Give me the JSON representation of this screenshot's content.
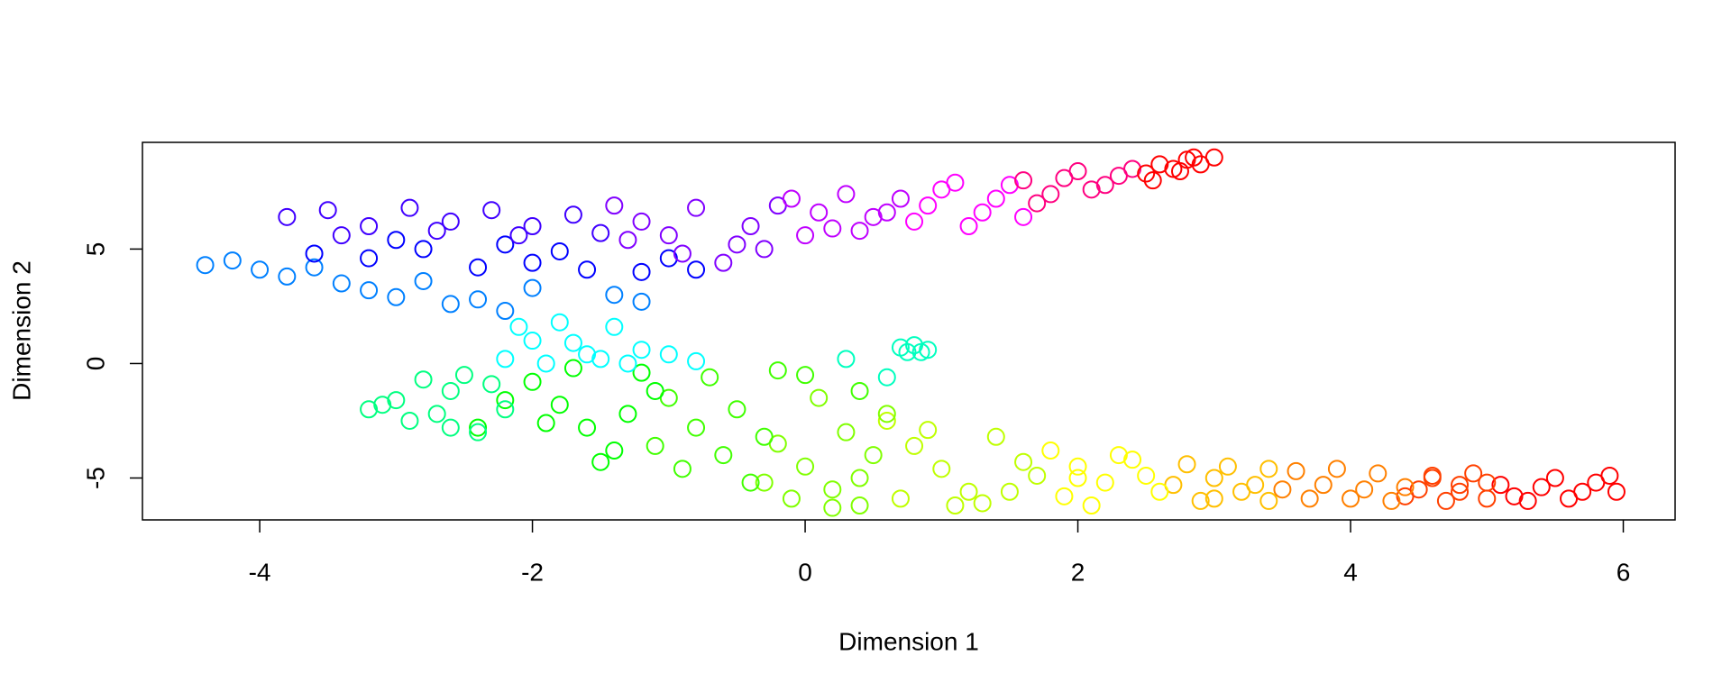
{
  "chart_data": {
    "type": "scatter",
    "xlabel": "Dimension 1",
    "ylabel": "Dimension 2",
    "xlim": [
      -4.86,
      6.38
    ],
    "ylim": [
      -6.83,
      9.66
    ],
    "xticks": [
      -4,
      -2,
      0,
      2,
      4,
      6
    ],
    "yticks": [
      -5,
      0,
      5
    ],
    "series": [
      {
        "color": "#ff0000",
        "x": [
          5.95,
          5.8,
          5.6,
          5.4,
          5.2,
          5.9,
          5.5,
          5.3,
          5.7,
          5.1
        ],
        "values": [
          -5.6,
          -5.2,
          -5.9,
          -5.4,
          -5.8,
          -4.9,
          -5.0,
          -6.0,
          -5.6,
          -5.3
        ]
      },
      {
        "color": "#ff4000",
        "x": [
          4.6,
          4.8,
          5.0,
          4.7,
          4.9,
          4.5,
          5.0,
          4.6,
          4.8,
          4.4
        ],
        "values": [
          -5.0,
          -5.6,
          -5.2,
          -6.0,
          -4.8,
          -5.5,
          -5.9,
          -4.9,
          -5.3,
          -5.8
        ]
      },
      {
        "color": "#ff8000",
        "x": [
          3.6,
          3.8,
          4.0,
          4.2,
          4.4,
          3.7,
          3.9,
          4.1,
          4.3,
          3.5
        ],
        "values": [
          -4.7,
          -5.3,
          -5.9,
          -4.8,
          -5.4,
          -5.9,
          -4.6,
          -5.5,
          -6.0,
          -5.5
        ]
      },
      {
        "color": "#ffbf00",
        "x": [
          2.8,
          3.0,
          3.2,
          3.4,
          2.9,
          3.1,
          3.3,
          2.7,
          3.0,
          3.4
        ],
        "values": [
          -4.4,
          -5.0,
          -5.6,
          -4.6,
          -6.0,
          -4.5,
          -5.3,
          -5.3,
          -5.9,
          -6.0
        ]
      },
      {
        "color": "#ffff00",
        "x": [
          1.8,
          2.0,
          2.2,
          2.4,
          2.6,
          1.9,
          2.1,
          2.3,
          2.5,
          2.0
        ],
        "values": [
          -3.8,
          -4.5,
          -5.2,
          -4.2,
          -5.6,
          -5.8,
          -6.2,
          -4.0,
          -4.9,
          -5.0
        ]
      },
      {
        "color": "#bfff00",
        "x": [
          0.6,
          0.8,
          1.0,
          1.2,
          1.4,
          1.6,
          0.7,
          1.1,
          1.5,
          0.9,
          1.3,
          1.7
        ],
        "values": [
          -2.5,
          -3.6,
          -4.6,
          -5.6,
          -3.2,
          -4.3,
          -5.9,
          -6.2,
          -5.6,
          -2.9,
          -6.1,
          -4.9
        ]
      },
      {
        "color": "#80ff00",
        "x": [
          -0.2,
          0,
          0.2,
          0.4,
          0.6,
          -0.1,
          0.1,
          0.3,
          0.5,
          0.2,
          0.4,
          -0.3
        ],
        "values": [
          -3.5,
          -4.5,
          -5.5,
          -6.2,
          -2.2,
          -5.9,
          -1.5,
          -3.0,
          -4.0,
          -6.3,
          -5.0,
          -5.2
        ]
      },
      {
        "color": "#40ff00",
        "x": [
          -1,
          -0.8,
          -0.6,
          -0.4,
          -0.2,
          -0.9,
          -0.7,
          -0.5,
          -0.3,
          0,
          -1.1,
          0.4
        ],
        "values": [
          -1.5,
          -2.8,
          -4.0,
          -5.2,
          -0.3,
          -4.6,
          -0.6,
          -2.0,
          -3.2,
          -0.5,
          -3.6,
          -1.2
        ]
      },
      {
        "color": "#00ff00",
        "x": [
          -2,
          -1.8,
          -1.6,
          -1.4,
          -1.2,
          -1.7,
          -1.5,
          -1.3,
          -1.9,
          -1.1,
          -2.2,
          -2.4
        ],
        "values": [
          -0.8,
          -1.8,
          -2.8,
          -3.8,
          -0.4,
          -0.2,
          -4.3,
          -2.2,
          -2.6,
          -1.2,
          -1.6,
          -2.8
        ]
      },
      {
        "color": "#00ff80",
        "x": [
          -3.2,
          -3.0,
          -2.8,
          -2.6,
          -2.4,
          -2.9,
          -2.7,
          -2.5,
          -2.3,
          -3.1,
          -2.6,
          -2.2
        ],
        "values": [
          -2.0,
          -1.6,
          -0.7,
          -1.2,
          -3.0,
          -2.5,
          -2.2,
          -0.5,
          -0.9,
          -1.8,
          -2.8,
          -2.0
        ]
      },
      {
        "color": "#00ffbf",
        "x": [
          0.7,
          0.8,
          0.9,
          0.85,
          0.75,
          0.3,
          0.6
        ],
        "values": [
          0.7,
          0.8,
          0.6,
          0.5,
          0.5,
          0.2,
          -0.6
        ]
      },
      {
        "color": "#00ffff",
        "x": [
          -2.2,
          -2.0,
          -1.8,
          -1.6,
          -1.4,
          -1.2,
          -1.9,
          -1.7,
          -1.5,
          -2.1,
          -1.3,
          -1.0,
          -0.8
        ],
        "values": [
          0.2,
          1.0,
          1.8,
          0.4,
          1.6,
          0.6,
          0,
          0.9,
          0.2,
          1.6,
          0.0,
          0.4,
          0.1
        ]
      },
      {
        "color": "#0080ff",
        "x": [
          -4.4,
          -4.2,
          -4.0,
          -3.8,
          -3.6,
          -3.4,
          -3.2,
          -3.0,
          -2.8,
          -2.6,
          -2.4,
          -2.2,
          -1.4,
          -1.2,
          -2.0
        ],
        "values": [
          4.3,
          4.5,
          4.1,
          3.8,
          4.2,
          3.5,
          3.2,
          2.9,
          3.6,
          2.6,
          2.8,
          2.3,
          3.0,
          2.7,
          3.3
        ]
      },
      {
        "color": "#0000ff",
        "x": [
          -3.6,
          -3.2,
          -2.8,
          -2.4,
          -2.0,
          -1.6,
          -1.2,
          -0.8,
          -3.0,
          -2.2,
          -1.8,
          -1.0
        ],
        "values": [
          4.8,
          4.6,
          5.0,
          4.2,
          4.4,
          4.1,
          4.0,
          4.1,
          5.4,
          5.2,
          4.9,
          4.6
        ]
      },
      {
        "color": "#4000ff",
        "x": [
          -3.8,
          -3.5,
          -3.2,
          -2.9,
          -2.6,
          -2.3,
          -2.0,
          -1.7,
          -3.4,
          -2.7,
          -2.1,
          -1.5
        ],
        "values": [
          6.4,
          6.7,
          6.0,
          6.8,
          6.2,
          6.7,
          6.0,
          6.5,
          5.6,
          5.8,
          5.6,
          5.7
        ]
      },
      {
        "color": "#8000ff",
        "x": [
          -1.4,
          -1.2,
          -1.0,
          -0.8,
          -0.6,
          -0.4,
          -0.2,
          -1.3,
          -0.9,
          -0.5,
          -0.3
        ],
        "values": [
          6.9,
          6.2,
          5.6,
          6.8,
          4.4,
          6.0,
          6.9,
          5.4,
          4.8,
          5.2,
          5.0
        ]
      },
      {
        "color": "#bf00ff",
        "x": [
          -0.1,
          0.1,
          0.3,
          0.5,
          0.7,
          0.0,
          0.2,
          0.4,
          0.6
        ],
        "values": [
          7.2,
          6.6,
          7.4,
          6.4,
          7.2,
          5.6,
          5.9,
          5.8,
          6.6
        ]
      },
      {
        "color": "#ff00ff",
        "x": [
          0.8,
          1.0,
          1.2,
          1.4,
          0.9,
          1.1,
          1.3,
          1.5,
          1.6
        ],
        "values": [
          6.2,
          7.6,
          6.0,
          7.2,
          6.9,
          7.9,
          6.6,
          7.8,
          6.4
        ]
      },
      {
        "color": "#ff0080",
        "x": [
          1.6,
          1.8,
          2.0,
          2.2,
          2.4,
          1.7,
          1.9,
          2.1,
          2.3
        ],
        "values": [
          8.0,
          7.4,
          8.4,
          7.8,
          8.5,
          7.0,
          8.1,
          7.6,
          8.2
        ]
      },
      {
        "color": "#ff0000",
        "x": [
          2.5,
          2.6,
          2.7,
          2.8,
          2.9,
          3.0,
          2.55,
          2.75,
          2.85
        ],
        "values": [
          8.3,
          8.7,
          8.5,
          8.9,
          8.7,
          9.0,
          8.0,
          8.4,
          9.0
        ]
      }
    ]
  }
}
